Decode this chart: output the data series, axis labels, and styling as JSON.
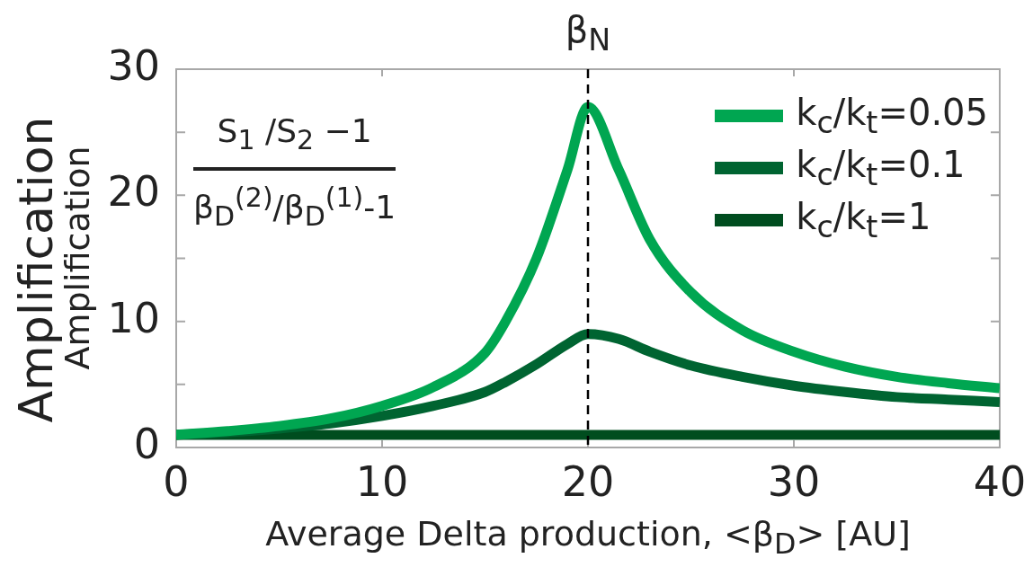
{
  "chart_data": {
    "type": "line",
    "xlabel": "Average Delta production, <β$_{D}$> [AU]",
    "ylabel": "Amplification",
    "annotations": [
      "S$_{1}$ /S$_{2}$ −1",
      "β$_{D}$$^{(2)}$/β$_{D}$$^{(1)}$-1",
      "Amplification"
    ],
    "x": [
      0,
      2.5,
      5,
      7.5,
      10,
      12.5,
      15,
      16,
      17.5,
      19,
      20,
      21.5,
      23,
      25,
      27.5,
      30,
      32.5,
      35,
      37.5,
      40
    ],
    "series": [
      {
        "name": "k$_{c}$/k$_{t}$=0.05",
        "color": "#00a651",
        "values": [
          1,
          1.3,
          1.7,
          2.3,
          3.3,
          4.8,
          7.5,
          10,
          15,
          22,
          27,
          22,
          16.5,
          12.3,
          9.3,
          7.6,
          6.4,
          5.6,
          5.1,
          4.7
        ]
      },
      {
        "name": "k$_{c}$/k$_{t}$=0.1",
        "color": "#006431",
        "values": [
          1,
          1.2,
          1.5,
          1.9,
          2.5,
          3.3,
          4.4,
          5.2,
          6.6,
          8.2,
          9,
          8.6,
          7.6,
          6.5,
          5.6,
          4.9,
          4.4,
          4.0,
          3.8,
          3.6
        ]
      },
      {
        "name": "k$_{c}$/k$_{t}$=1",
        "color": "#004d1f",
        "values": [
          1,
          1,
          1,
          1,
          1,
          1,
          1,
          1,
          1,
          1,
          1,
          1,
          1,
          1,
          1,
          1,
          1,
          1,
          1,
          1
        ]
      }
    ],
    "xlim": [
      0,
      40
    ],
    "xticks": [
      0,
      10,
      20,
      30,
      40
    ],
    "ylim": [
      0,
      30
    ],
    "yticks": [
      0,
      {
        "value": 5,
        "label": null
      },
      10,
      {
        "value": 15,
        "label": null
      },
      20,
      {
        "value": 25,
        "label": null
      },
      30
    ],
    "ref_lines": [
      {
        "axis": "x",
        "value": 20,
        "label": "β$_{N}$",
        "color": "#000000",
        "line_style": "dashed"
      }
    ],
    "legend": "top right",
    "marker": "none",
    "line_style": "solid",
    "grid": false
  }
}
